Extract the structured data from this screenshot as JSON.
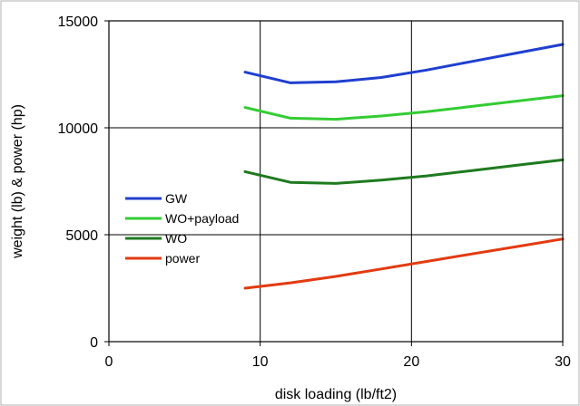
{
  "chart_data": {
    "type": "line",
    "xlabel": "disk loading (lb/ft2)",
    "ylabel": "weight (lb) & power (hp)",
    "xlim": [
      0,
      30
    ],
    "ylim": [
      0,
      15000
    ],
    "xticks": [
      0,
      10,
      20,
      30
    ],
    "yticks": [
      0,
      5000,
      10000,
      15000
    ],
    "xtick_labels": [
      "0",
      "10",
      "20",
      "30"
    ],
    "ytick_labels": [
      "0",
      "5000",
      "10000",
      "15000"
    ],
    "grid": true,
    "legend_position": "center-left",
    "series": [
      {
        "name": "GW",
        "color": "#1f3fcf",
        "x": [
          9,
          12,
          15,
          18,
          21,
          24,
          27,
          30
        ],
        "y": [
          12600,
          12100,
          12150,
          12350,
          12700,
          13100,
          13500,
          13900
        ]
      },
      {
        "name": "WO+payload",
        "color": "#33cc33",
        "x": [
          9,
          12,
          15,
          18,
          21,
          24,
          27,
          30
        ],
        "y": [
          10950,
          10450,
          10400,
          10550,
          10750,
          11000,
          11250,
          11500
        ]
      },
      {
        "name": "WO",
        "color": "#1e7a1e",
        "x": [
          9,
          12,
          15,
          18,
          21,
          24,
          27,
          30
        ],
        "y": [
          7950,
          7450,
          7400,
          7550,
          7750,
          8000,
          8250,
          8500
        ]
      },
      {
        "name": "power",
        "color": "#e23a10",
        "x": [
          9,
          12,
          15,
          18,
          21,
          24,
          27,
          30
        ],
        "y": [
          2500,
          2750,
          3050,
          3400,
          3750,
          4100,
          4450,
          4800
        ]
      }
    ]
  }
}
